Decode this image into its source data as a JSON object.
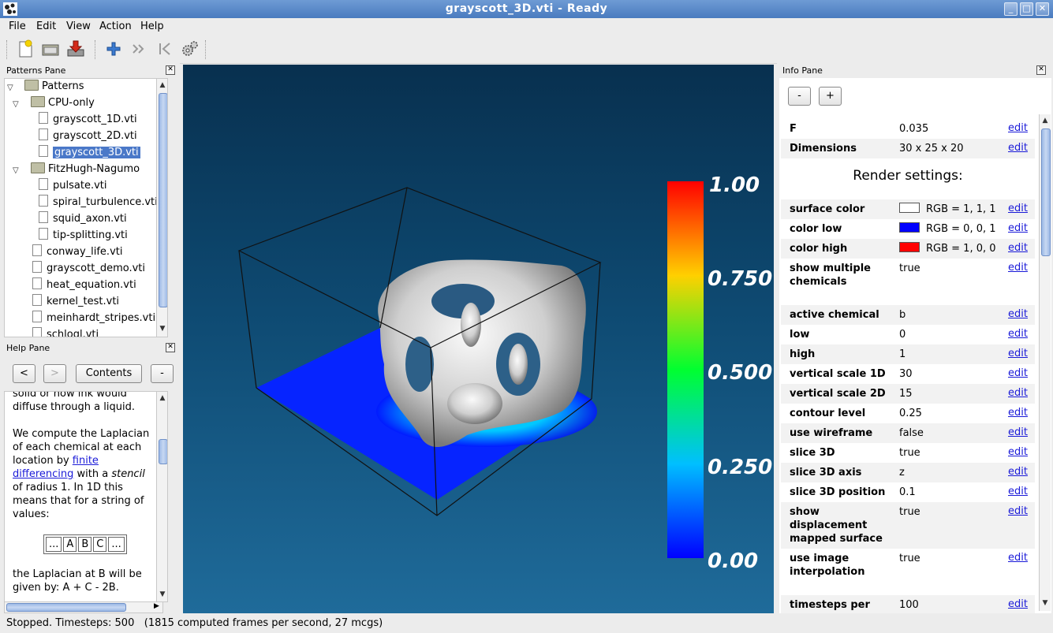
{
  "window": {
    "title": "grayscott_3D.vti - Ready"
  },
  "menus": [
    "File",
    "Edit",
    "View",
    "Action",
    "Help"
  ],
  "toolbar": {
    "icons": [
      "new-file-icon",
      "open-folder-icon",
      "save-icon",
      "add-icon",
      "step-forward-icon",
      "skip-to-start-icon",
      "settings-icon"
    ]
  },
  "patterns_pane": {
    "title": "Patterns Pane",
    "root": "Patterns",
    "folders": [
      {
        "name": "CPU-only",
        "files": [
          "grayscott_1D.vti",
          "grayscott_2D.vti",
          "grayscott_3D.vti"
        ]
      },
      {
        "name": "FitzHugh-Nagumo",
        "files": [
          "pulsate.vti",
          "spiral_turbulence.vti",
          "squid_axon.vti",
          "tip-splitting.vti"
        ]
      }
    ],
    "root_files": [
      "conway_life.vti",
      "grayscott_demo.vti",
      "heat_equation.vti",
      "kernel_test.vti",
      "meinhardt_stripes.vti",
      "schlogl.vti"
    ],
    "selected": "grayscott_3D.vti"
  },
  "help_pane": {
    "title": "Help Pane",
    "buttons": {
      "back": "<",
      "forward": ">",
      "contents": "Contents",
      "minus": "-"
    },
    "line0": "solid or how ink would",
    "line1": "diffuse through a liquid.",
    "p2_a": "We compute the Laplacian of each chemical at each location by ",
    "p2_link": "finite differencing",
    "p2_b": " with a ",
    "p2_em": "stencil",
    "p2_c": " of radius 1. In 1D this means that for a string of values:",
    "stencil": [
      "...",
      "A",
      "B",
      "C",
      "..."
    ],
    "p3": "the Laplacian at B will be given by: A + C - 2B."
  },
  "colorbar": {
    "labels": [
      "1.00",
      "0.750",
      "0.500",
      "0.250",
      "0.00"
    ]
  },
  "info_pane": {
    "title": "Info Pane",
    "buttons": {
      "minus": "-",
      "plus": "+"
    },
    "edit_label": "edit",
    "top_rows": [
      {
        "label": "F",
        "value": "0.035"
      },
      {
        "label": "Dimensions",
        "value": "30 x 25 x 20"
      }
    ],
    "render_heading": "Render settings:",
    "rows": [
      {
        "label": "surface color",
        "value": "RGB = 1, 1, 1",
        "swatch": "#ffffff"
      },
      {
        "label": "color low",
        "value": "RGB = 0, 0, 1",
        "swatch": "#0000ff"
      },
      {
        "label": "color high",
        "value": "RGB = 1, 0, 0",
        "swatch": "#ff0000"
      },
      {
        "label": "show multiple chemicals",
        "value": "true"
      },
      {
        "label": "active chemical",
        "value": "b"
      },
      {
        "label": "low",
        "value": "0"
      },
      {
        "label": "high",
        "value": "1"
      },
      {
        "label": "vertical scale 1D",
        "value": "30"
      },
      {
        "label": "vertical scale 2D",
        "value": "15"
      },
      {
        "label": "contour level",
        "value": "0.25"
      },
      {
        "label": "use wireframe",
        "value": "false"
      },
      {
        "label": "slice 3D",
        "value": "true"
      },
      {
        "label": "slice 3D axis",
        "value": "z"
      },
      {
        "label": "slice 3D position",
        "value": "0.1"
      },
      {
        "label": "show displacement mapped surface",
        "value": "true"
      },
      {
        "label": "use image interpolation",
        "value": "true"
      },
      {
        "label": "timesteps per render",
        "value": "100"
      }
    ]
  },
  "status": {
    "text": "Stopped. Timesteps: 500   (1815 computed frames per second, 27 mcgs)"
  }
}
